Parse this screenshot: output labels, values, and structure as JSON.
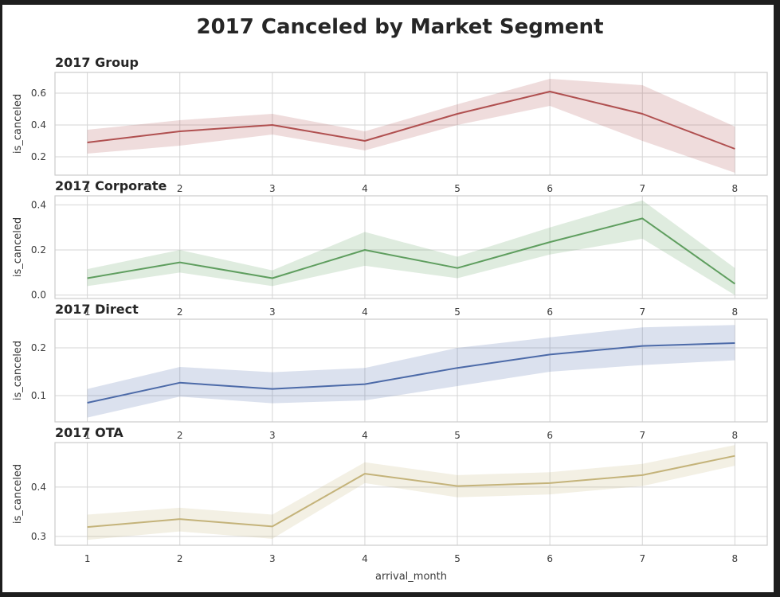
{
  "figure": {
    "title": "2017 Canceled by Market Segment"
  },
  "chart_data": [
    {
      "type": "line",
      "title": "2017 Group",
      "xlabel": "",
      "ylabel": "is_canceled",
      "x": [
        1,
        2,
        3,
        4,
        5,
        6,
        7,
        8
      ],
      "xlim": [
        0.65,
        8.35
      ],
      "xticks": [
        "1",
        "2",
        "3",
        "4",
        "5",
        "6",
        "7",
        "8"
      ],
      "ylim": [
        0.085,
        0.73
      ],
      "yticks": [
        0.2,
        0.4,
        0.6
      ],
      "ytick_labels": [
        "0.2",
        "0.4",
        "0.6"
      ],
      "grid": true,
      "color": "#b05050",
      "series": [
        {
          "name": "Group",
          "values": [
            0.29,
            0.36,
            0.4,
            0.3,
            0.47,
            0.61,
            0.47,
            0.25
          ],
          "ci_low": [
            0.22,
            0.27,
            0.34,
            0.24,
            0.4,
            0.52,
            0.3,
            0.1
          ],
          "ci_high": [
            0.37,
            0.43,
            0.47,
            0.36,
            0.53,
            0.69,
            0.65,
            0.39
          ]
        }
      ]
    },
    {
      "type": "line",
      "title": "2017 Corporate",
      "xlabel": "",
      "ylabel": "is_canceled",
      "x": [
        1,
        2,
        3,
        4,
        5,
        6,
        7,
        8
      ],
      "xlim": [
        0.65,
        8.35
      ],
      "xticks": [
        "1",
        "2",
        "3",
        "4",
        "5",
        "6",
        "7",
        "8"
      ],
      "ylim": [
        -0.015,
        0.44
      ],
      "yticks": [
        0.0,
        0.2,
        0.4
      ],
      "ytick_labels": [
        "0.0",
        "0.2",
        "0.4"
      ],
      "grid": true,
      "color": "#5f9e5f",
      "series": [
        {
          "name": "Corporate",
          "values": [
            0.075,
            0.145,
            0.075,
            0.2,
            0.12,
            0.235,
            0.34,
            0.05
          ],
          "ci_low": [
            0.04,
            0.1,
            0.04,
            0.13,
            0.075,
            0.18,
            0.25,
            0.0
          ],
          "ci_high": [
            0.115,
            0.2,
            0.11,
            0.28,
            0.17,
            0.3,
            0.42,
            0.12
          ]
        }
      ]
    },
    {
      "type": "line",
      "title": "2017 Direct",
      "xlabel": "",
      "ylabel": "is_canceled",
      "x": [
        1,
        2,
        3,
        4,
        5,
        6,
        7,
        8
      ],
      "xlim": [
        0.65,
        8.35
      ],
      "xticks": [
        "1",
        "2",
        "3",
        "4",
        "5",
        "6",
        "7",
        "8"
      ],
      "ylim": [
        0.045,
        0.26
      ],
      "yticks": [
        0.1,
        0.2
      ],
      "ytick_labels": [
        "0.1",
        "0.2"
      ],
      "grid": true,
      "color": "#4c6aa8",
      "series": [
        {
          "name": "Direct",
          "values": [
            0.085,
            0.127,
            0.114,
            0.124,
            0.158,
            0.186,
            0.204,
            0.21
          ],
          "ci_low": [
            0.054,
            0.098,
            0.084,
            0.09,
            0.12,
            0.15,
            0.164,
            0.174
          ],
          "ci_high": [
            0.114,
            0.16,
            0.149,
            0.158,
            0.2,
            0.222,
            0.243,
            0.248
          ]
        }
      ]
    },
    {
      "type": "line",
      "title": "2017 OTA",
      "xlabel": "arrival_month",
      "ylabel": "is_canceled",
      "x": [
        1,
        2,
        3,
        4,
        5,
        6,
        7,
        8
      ],
      "xlim": [
        0.65,
        8.35
      ],
      "xticks": [
        "1",
        "2",
        "3",
        "4",
        "5",
        "6",
        "7",
        "8"
      ],
      "ylim": [
        0.282,
        0.49
      ],
      "yticks": [
        0.3,
        0.4
      ],
      "ytick_labels": [
        "0.3",
        "0.4"
      ],
      "grid": true,
      "color": "#c4b37a",
      "series": [
        {
          "name": "OTA",
          "values": [
            0.319,
            0.335,
            0.32,
            0.427,
            0.402,
            0.408,
            0.424,
            0.463
          ],
          "ci_low": [
            0.293,
            0.31,
            0.295,
            0.408,
            0.379,
            0.385,
            0.402,
            0.443
          ],
          "ci_high": [
            0.344,
            0.358,
            0.344,
            0.45,
            0.424,
            0.43,
            0.447,
            0.485
          ]
        }
      ]
    }
  ]
}
